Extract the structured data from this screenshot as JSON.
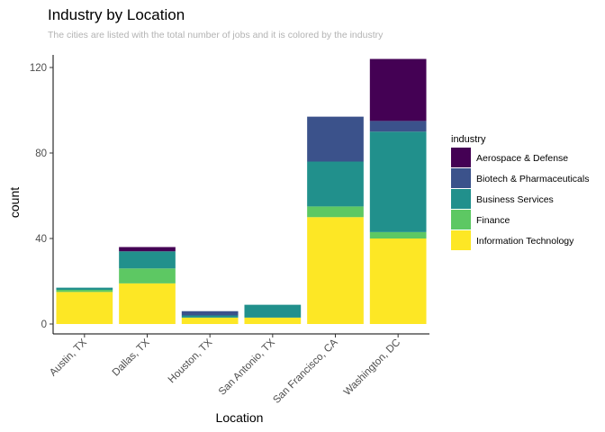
{
  "chart_data": {
    "type": "bar",
    "stacked": true,
    "title": "Industry by Location",
    "subtitle": "The cities are listed with the total number of jobs and it is colored by the industry",
    "xlabel": "Location",
    "ylabel": "count",
    "ylim": [
      0,
      128
    ],
    "yticks": [
      0,
      40,
      80,
      120
    ],
    "grid": false,
    "legend_position": "right",
    "legend_title": "industry",
    "categories": [
      "Austin, TX",
      "Dallas, TX",
      "Houston, TX",
      "San Antonio, TX",
      "San Francisco, CA",
      "Washington, DC"
    ],
    "series": [
      {
        "name": "Aerospace & Defense",
        "color": "#440154",
        "values": [
          0,
          2,
          0,
          0,
          0,
          29
        ]
      },
      {
        "name": "Biotech & Pharmaceuticals",
        "color": "#3B528B",
        "values": [
          0,
          0,
          2,
          0,
          21,
          5
        ]
      },
      {
        "name": "Business Services",
        "color": "#21908C",
        "values": [
          1,
          8,
          1,
          6,
          21,
          47
        ]
      },
      {
        "name": "Finance",
        "color": "#5DC863",
        "values": [
          1,
          7,
          0,
          0,
          5,
          3
        ]
      },
      {
        "name": "Information Technology",
        "color": "#FDE725",
        "values": [
          15,
          19,
          3,
          3,
          50,
          40
        ]
      }
    ]
  }
}
